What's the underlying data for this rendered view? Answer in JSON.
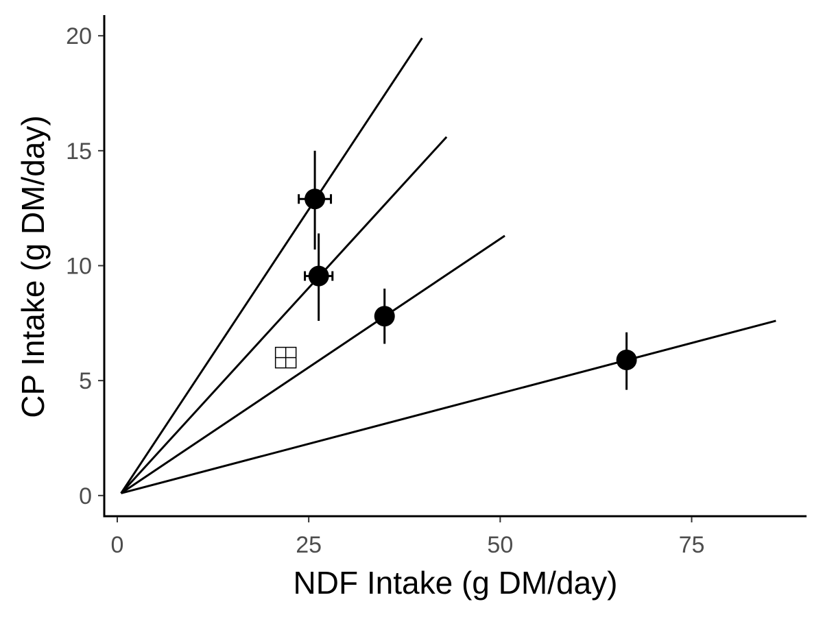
{
  "chart_data": {
    "type": "scatter",
    "title": "",
    "xlabel": "NDF Intake (g DM/day)",
    "ylabel": "CP Intake (g DM/day)",
    "xlim": [
      -1.7,
      90
    ],
    "ylim": [
      -0.9,
      20.9
    ],
    "x_ticks": [
      0,
      25,
      50,
      75
    ],
    "x_tick_labels": [
      "0",
      "25",
      "50",
      "75"
    ],
    "y_ticks": [
      0,
      5,
      10,
      15,
      20
    ],
    "y_tick_labels": [
      "0",
      "5",
      "10",
      "15",
      "20"
    ],
    "grid": false,
    "legend": "none",
    "points": [
      {
        "x": 25.8,
        "y": 12.9,
        "x_err": 2.1,
        "y_err_low": 10.7,
        "y_err_high": 15.0
      },
      {
        "x": 26.3,
        "y": 9.55,
        "x_err": 1.8,
        "y_err_low": 7.6,
        "y_err_high": 11.4
      },
      {
        "x": 34.9,
        "y": 7.8,
        "x_err": 0,
        "y_err_low": 6.6,
        "y_err_high": 9.0
      },
      {
        "x": 66.5,
        "y": 5.9,
        "x_err": 0,
        "y_err_low": 4.6,
        "y_err_high": 7.1
      }
    ],
    "reference_lines": [
      {
        "x0": 0.5,
        "y0": 0.1,
        "x1": 39.8,
        "y1": 19.9
      },
      {
        "x0": 0.5,
        "y0": 0.1,
        "x1": 43.0,
        "y1": 15.6
      },
      {
        "x0": 0.5,
        "y0": 0.1,
        "x1": 50.6,
        "y1": 11.3
      },
      {
        "x0": 0.5,
        "y0": 0.1,
        "x1": 86.0,
        "y1": 7.6
      }
    ],
    "open_marker": {
      "x": 22.0,
      "y": 6.0,
      "symbol": "square-cross"
    }
  }
}
